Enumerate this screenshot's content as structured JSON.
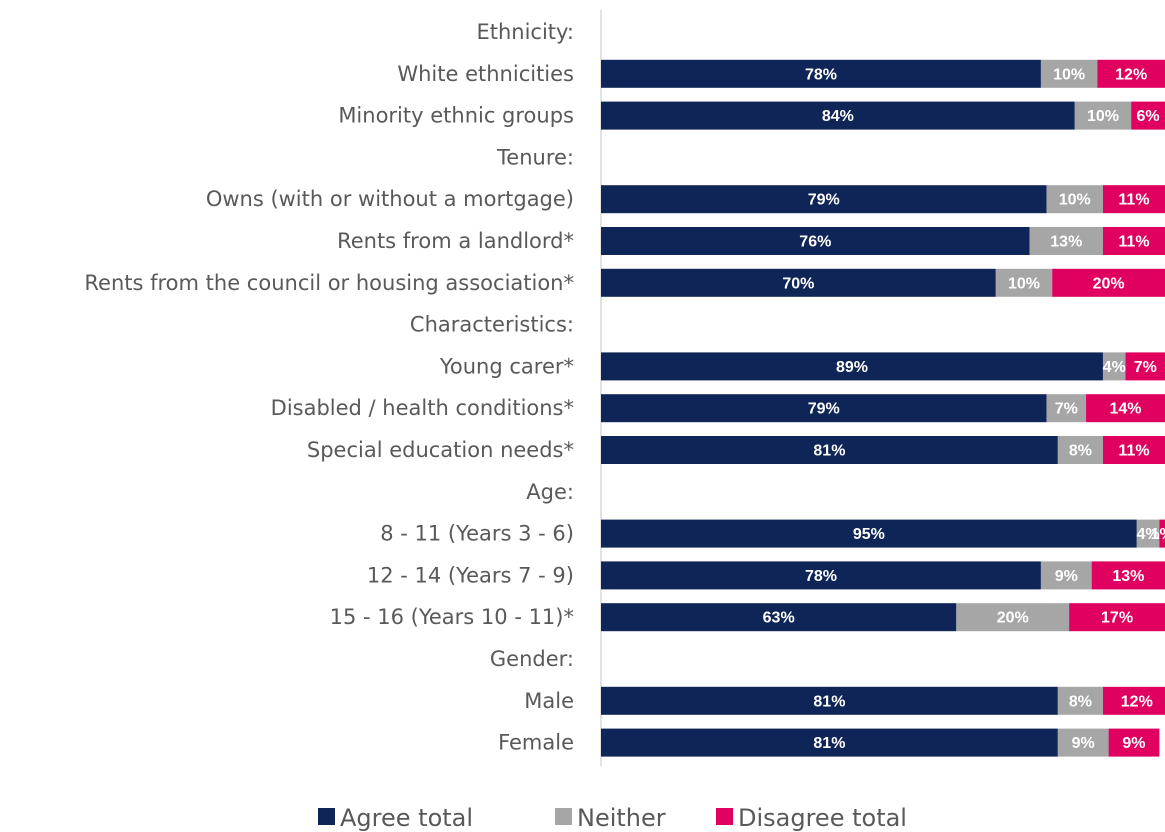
{
  "chart_data": {
    "type": "bar",
    "orientation": "horizontal",
    "stacked": true,
    "normalized": "percent",
    "categories": [
      "Ethnicity:",
      "White ethnicities",
      "Minority ethnic groups",
      "Tenure:",
      "Owns (with or without a mortgage)",
      "Rents from a landlord*",
      "Rents from the council or housing association*",
      "Characteristics:",
      "Young carer*",
      "Disabled / health conditions*",
      "Special education needs*",
      "Age:",
      "8 - 11 (Years 3 - 6)",
      "12 - 14 (Years 7 - 9)",
      "15 - 16 (Years 10 - 11)*",
      "Gender:",
      "Male",
      "Female"
    ],
    "series": [
      {
        "name": "Agree total",
        "color": "#0f2557",
        "values": [
          null,
          78,
          84,
          null,
          79,
          76,
          70,
          null,
          89,
          79,
          81,
          null,
          95,
          78,
          63,
          null,
          81,
          81
        ],
        "labels": [
          "",
          "78%",
          "84%",
          "",
          "79%",
          "76%",
          "70%",
          "",
          "89%",
          "79%",
          "81%",
          "",
          "95%",
          "78%",
          "63%",
          "",
          "81%",
          "81%"
        ]
      },
      {
        "name": "Neither",
        "color": "#a6a6a6",
        "values": [
          null,
          10,
          10,
          null,
          10,
          13,
          10,
          null,
          4,
          7,
          8,
          null,
          4,
          9,
          20,
          null,
          8,
          9
        ],
        "labels": [
          "",
          "10%",
          "10%",
          "",
          "10%",
          "13%",
          "10%",
          "",
          "4%",
          "7%",
          "8%",
          "",
          "4%",
          "9%",
          "20%",
          "",
          "8%",
          "9%"
        ]
      },
      {
        "name": "Disagree total",
        "color": "#e0005f",
        "values": [
          null,
          12,
          6,
          null,
          11,
          11,
          20,
          null,
          7,
          14,
          11,
          null,
          1,
          13,
          17,
          null,
          12,
          9
        ],
        "labels": [
          "",
          "12%",
          "6%",
          "",
          "11%",
          "11%",
          "20%",
          "",
          "7%",
          "14%",
          "11%",
          "",
          "1%",
          "13%",
          "17%",
          "",
          "12%",
          "9%"
        ]
      }
    ],
    "xlim": [
      0,
      100
    ],
    "grid": false,
    "legend_position": "bottom"
  }
}
